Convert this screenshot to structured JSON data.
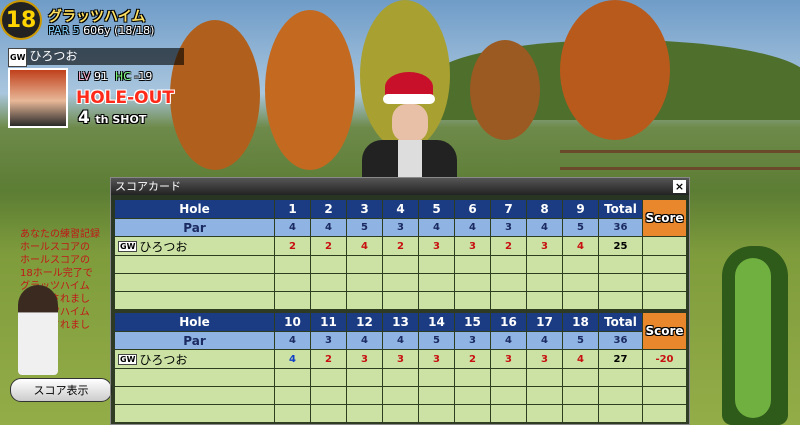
{
  "hole_info": {
    "hole": 18,
    "course": "グラッツハイム",
    "par": "PAR 5",
    "distance": "606y",
    "progress": "(18/18)"
  },
  "player": {
    "badge": "GW",
    "name": "ひろつお",
    "level_label": "LV",
    "level": 91,
    "hc_label": "HC",
    "hc": -19,
    "status": "HOLE-OUT",
    "shot": 4,
    "shot_suffix": "th SHOT"
  },
  "chat": [
    "あなたの練習記録",
    "ホールスコアの",
    "ホールスコアの",
    "18ホール完了で",
    "グラッツハイム",
    "が記録されまし",
    "グラッツハイム",
    "が記録されまし"
  ],
  "button": "スコア表示",
  "scorecard": {
    "title": "スコアカード",
    "tables": [
      {
        "hole_label": "Hole",
        "holes": [
          1,
          2,
          3,
          4,
          5,
          6,
          7,
          8,
          9
        ],
        "total_label": "Total",
        "score_label": "Score",
        "par_label": "Par",
        "pars": [
          4,
          4,
          5,
          3,
          4,
          4,
          3,
          4,
          5
        ],
        "par_total": 36,
        "player": {
          "badge": "GW",
          "name": "ひろつお",
          "scores": [
            2,
            2,
            4,
            2,
            3,
            3,
            2,
            3,
            4
          ],
          "total": 25
        }
      },
      {
        "hole_label": "Hole",
        "holes": [
          10,
          11,
          12,
          13,
          14,
          15,
          16,
          17,
          18
        ],
        "total_label": "Total",
        "score_label": "Score",
        "par_label": "Par",
        "pars": [
          4,
          3,
          4,
          4,
          5,
          3,
          4,
          4,
          5
        ],
        "par_total": 36,
        "player": {
          "badge": "GW",
          "name": "ひろつお",
          "scores": [
            4,
            2,
            3,
            3,
            3,
            2,
            3,
            3,
            4
          ],
          "total": 27,
          "score": -20
        }
      }
    ]
  }
}
